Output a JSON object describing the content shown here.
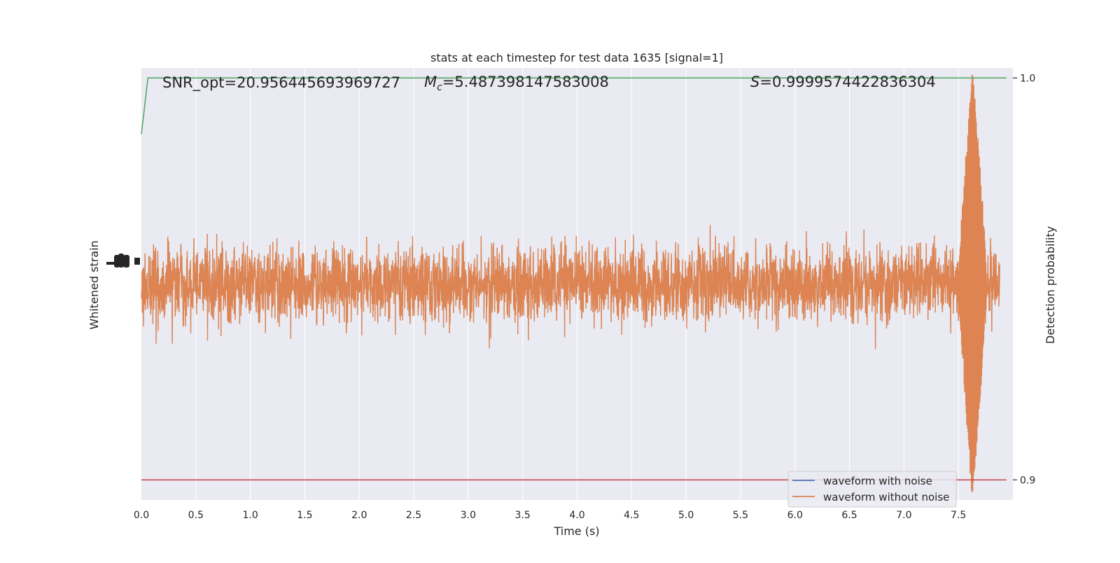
{
  "chart_data": {
    "type": "line",
    "title": "stats at each timestep for test data 1635 [signal=1]",
    "xlabel": "Time (s)",
    "ylabel_left": "Whitened strain",
    "ylabel_right": "Detection probability",
    "xlim": [
      0.0,
      8.0
    ],
    "xticks": [
      "0.0",
      "0.5",
      "1.0",
      "1.5",
      "2.0",
      "2.5",
      "3.0",
      "3.5",
      "4.0",
      "4.5",
      "5.0",
      "5.5",
      "6.0",
      "6.5",
      "7.0",
      "7.5"
    ],
    "right_ylim": [
      0.895,
      1.0025
    ],
    "right_yticks": [
      "0.9",
      "1.0"
    ],
    "left_ylim": [
      -1.0,
      1.0
    ],
    "annotations": {
      "snr": "SNR_opt=20.956445693969727",
      "mc_symbol": "M",
      "mc_sub": "c",
      "mc_value": "=5.487398147583008",
      "s_symbol": "S",
      "s_value": "=0.9999574422836304"
    },
    "series": [
      {
        "name": "waveform with noise",
        "color": "#4c72b0",
        "axis": "left",
        "note_values": "visually hidden beneath the orange trace"
      },
      {
        "name": "waveform without noise",
        "color": "#dd8452",
        "axis": "left",
        "points_per_second": 512,
        "envelope": {
          "typical_amplitude": 0.4,
          "peak_max": 0.98,
          "peak_min": -0.99,
          "peak_time": 7.63
        }
      },
      {
        "name": "",
        "color": "#55a868",
        "axis": "right",
        "x": [
          0.0,
          0.06,
          7.94
        ],
        "y": [
          0.986,
          1.0,
          1.0
        ]
      },
      {
        "name": "",
        "color": "#c44e52",
        "axis": "right",
        "x": [
          0.0,
          7.94
        ],
        "y": [
          0.9,
          0.9
        ]
      }
    ],
    "legend_position": "lower-right",
    "grid": true
  }
}
